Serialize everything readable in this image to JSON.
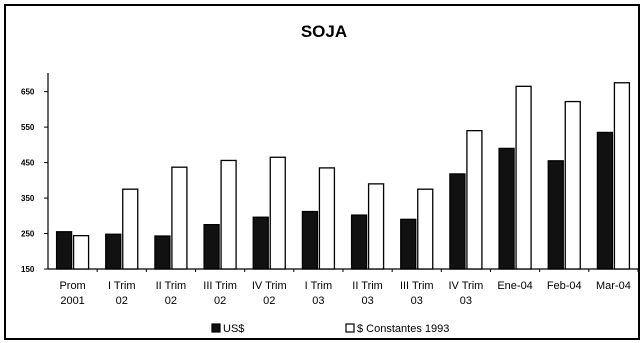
{
  "chart_data": {
    "type": "bar",
    "title": "SOJA",
    "xlabel": "",
    "ylabel": "",
    "ylim": [
      150,
      680
    ],
    "yticks": [
      {
        "value": 150,
        "label": "150"
      },
      {
        "value": 250,
        "label": "250"
      },
      {
        "value": 350,
        "label": "350"
      },
      {
        "value": 450,
        "label": "450"
      },
      {
        "value": 550,
        "label": "550"
      },
      {
        "value": 650,
        "label": "650"
      }
    ],
    "categories": [
      [
        "Prom",
        "2001"
      ],
      [
        "I Trim",
        "02"
      ],
      [
        "II Trim",
        "02"
      ],
      [
        "III Trim",
        "02"
      ],
      [
        "IV Trim",
        "02"
      ],
      [
        "I Trim",
        "03"
      ],
      [
        "II Trim",
        "03"
      ],
      [
        "III Trim",
        "03"
      ],
      [
        "IV Trim",
        "03"
      ],
      [
        "Ene-04"
      ],
      [
        "Feb-04"
      ],
      [
        "Mar-04"
      ]
    ],
    "series": [
      {
        "name": "US$",
        "color": "#111111",
        "values": [
          255,
          248,
          243,
          275,
          296,
          312,
          302,
          290,
          418,
          490,
          455,
          535
        ]
      },
      {
        "name": "$ Constantes 1993",
        "color": "#ffffff",
        "values": [
          244,
          375,
          437,
          456,
          465,
          435,
          390,
          375,
          540,
          665,
          622,
          675
        ]
      }
    ],
    "grid": false,
    "legend": "bottom"
  }
}
